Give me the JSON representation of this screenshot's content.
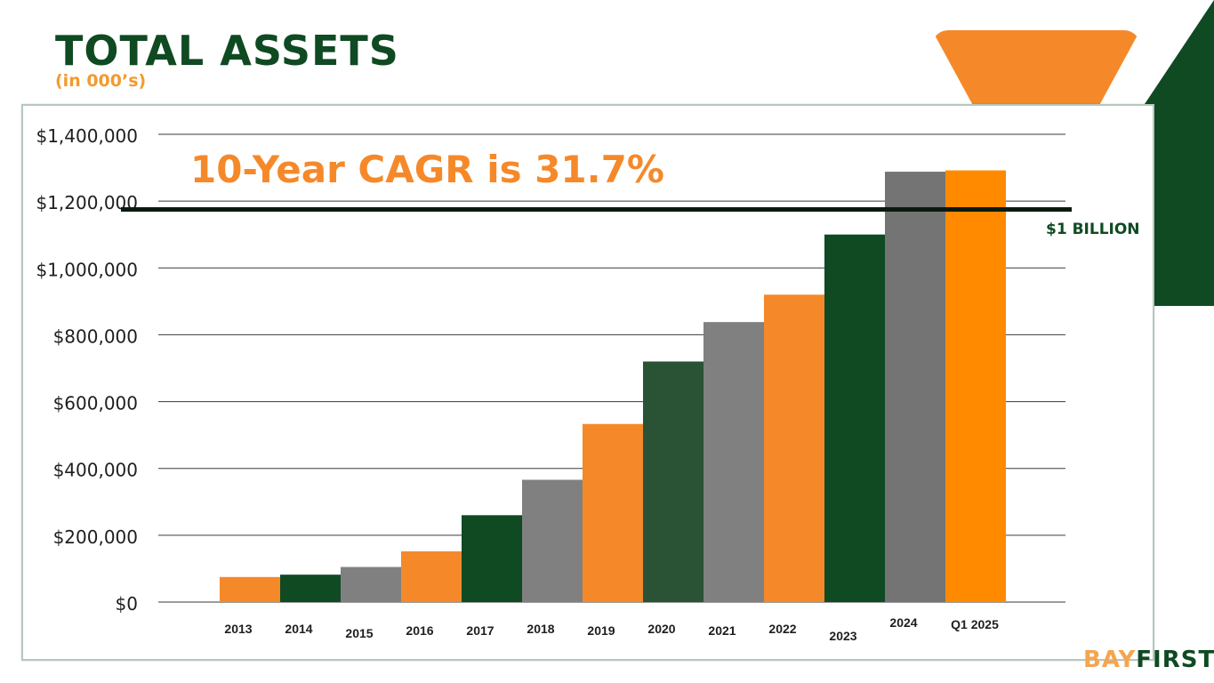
{
  "page": {
    "title": "TOTAL ASSETS",
    "subtitle": "(in 000’s)",
    "cagr_note": "10-Year CAGR is 31.7%",
    "reference_label": "$1 BILLION",
    "brand": {
      "part1": "BAY",
      "part2": "FIRST"
    }
  },
  "colors": {
    "green": "#0f4a22",
    "dark_green": "#2a5235",
    "orange": "#f5892a",
    "bright_orange": "#ff8a00",
    "gray": "#808080",
    "dark_gray": "#747474"
  },
  "chart_data": {
    "type": "bar",
    "categories": [
      "2013",
      "2014",
      "2015",
      "2016",
      "2017",
      "2018",
      "2019",
      "2020",
      "2021",
      "2022",
      "2023",
      "2024",
      "Q1 2025"
    ],
    "values": [
      75000,
      82000,
      105000,
      152000,
      260000,
      366000,
      533000,
      720000,
      838000,
      920000,
      1100000,
      1288000,
      1292000
    ],
    "bar_colors": [
      "#f5892a",
      "#0f4a22",
      "#808080",
      "#f5892a",
      "#0f4a22",
      "#808080",
      "#f5892a",
      "#2a5235",
      "#808080",
      "#f5892a",
      "#0f4a22",
      "#747474",
      "#ff8a00"
    ],
    "y_ticks": [
      0,
      200000,
      400000,
      600000,
      800000,
      1000000,
      1200000,
      1400000
    ],
    "y_tick_labels": [
      "$0",
      "$200,000",
      "$400,000",
      "$600,000",
      "$800,000",
      "$1,000,000",
      "$1,200,000",
      "$1,400,000"
    ],
    "ylim": [
      0,
      1400000
    ],
    "reference_line": 1175000,
    "grid": true,
    "legend": "none"
  }
}
